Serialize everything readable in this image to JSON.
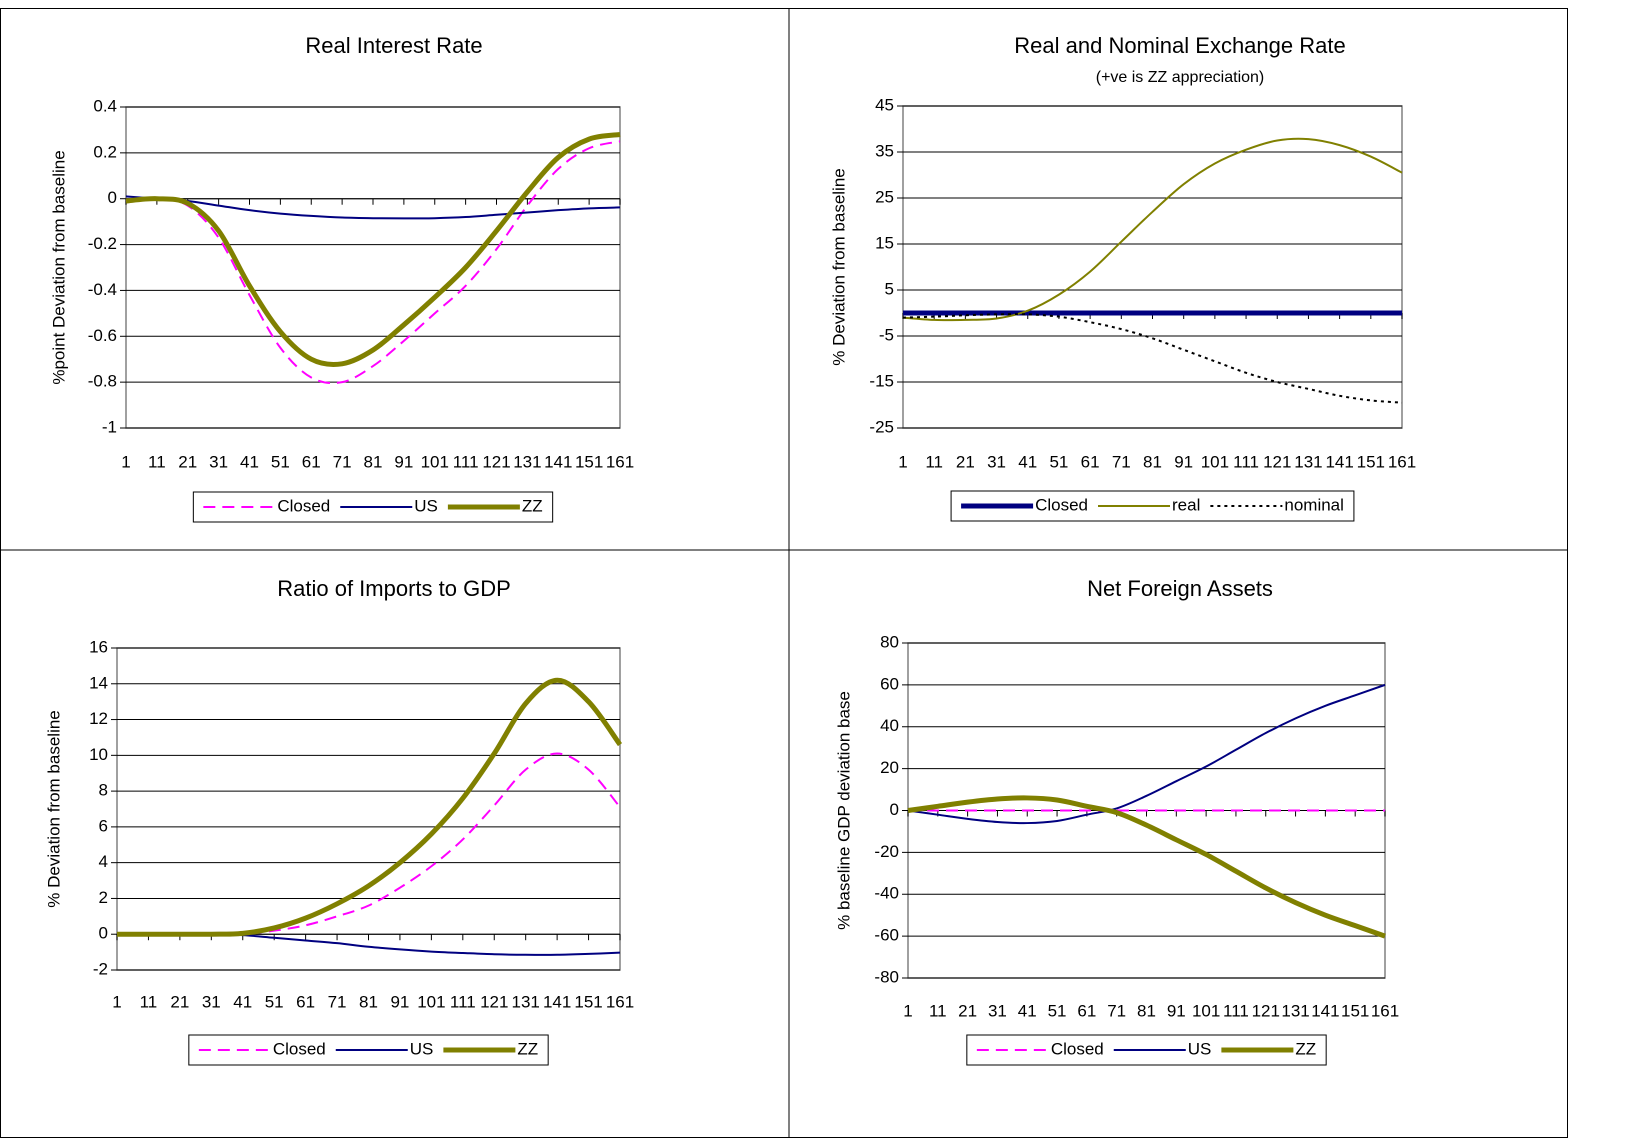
{
  "chart_data": [
    {
      "type": "line",
      "title": "Real Interest Rate",
      "y_label": "%point  Deviation from baseline",
      "x": [
        1,
        11,
        21,
        31,
        41,
        51,
        61,
        71,
        81,
        91,
        101,
        111,
        121,
        131,
        141,
        151,
        161
      ],
      "xlim": [
        1,
        161
      ],
      "xticks": [
        1,
        11,
        21,
        31,
        41,
        51,
        61,
        71,
        81,
        91,
        101,
        111,
        121,
        131,
        141,
        151,
        161
      ],
      "ylim": [
        -1,
        0.4
      ],
      "yticks": [
        -1,
        -0.8,
        -0.6,
        -0.4,
        -0.2,
        0,
        0.2,
        0.4
      ],
      "grid": true,
      "series": [
        {
          "name": "Closed",
          "color": "#ff00ff",
          "style": "dashed",
          "width": 2,
          "values": [
            -0.01,
            0.0,
            -0.03,
            -0.17,
            -0.42,
            -0.65,
            -0.78,
            -0.8,
            -0.73,
            -0.62,
            -0.5,
            -0.38,
            -0.22,
            -0.03,
            0.13,
            0.22,
            0.25
          ]
        },
        {
          "name": "US",
          "color": "#000080",
          "style": "solid",
          "width": 2,
          "values": [
            0.01,
            0.0,
            -0.01,
            -0.03,
            -0.05,
            -0.065,
            -0.075,
            -0.082,
            -0.085,
            -0.086,
            -0.085,
            -0.08,
            -0.07,
            -0.06,
            -0.05,
            -0.042,
            -0.038
          ]
        },
        {
          "name": "ZZ",
          "color": "#808000",
          "style": "solid",
          "width": 5,
          "values": [
            -0.01,
            0.0,
            -0.02,
            -0.14,
            -0.38,
            -0.58,
            -0.7,
            -0.72,
            -0.66,
            -0.55,
            -0.43,
            -0.3,
            -0.14,
            0.03,
            0.18,
            0.26,
            0.28
          ]
        }
      ]
    },
    {
      "type": "line",
      "title": "Real and Nominal Exchange Rate",
      "subtitle": "(+ve is ZZ appreciation)",
      "y_label": "%  Deviation from baseline",
      "x": [
        1,
        11,
        21,
        31,
        41,
        51,
        61,
        71,
        81,
        91,
        101,
        111,
        121,
        131,
        141,
        151,
        161
      ],
      "xlim": [
        1,
        161
      ],
      "xticks": [
        1,
        11,
        21,
        31,
        41,
        51,
        61,
        71,
        81,
        91,
        101,
        111,
        121,
        131,
        141,
        151,
        161
      ],
      "ylim": [
        -25,
        45
      ],
      "yticks": [
        -25,
        -15,
        -5,
        5,
        15,
        25,
        35,
        45
      ],
      "grid": true,
      "series": [
        {
          "name": "Closed",
          "color": "#000080",
          "style": "solid",
          "width": 5,
          "values": [
            0,
            0,
            0,
            0,
            0,
            0,
            0,
            0,
            0,
            0,
            0,
            0,
            0,
            0,
            0,
            0,
            0
          ]
        },
        {
          "name": "real",
          "color": "#808000",
          "style": "solid",
          "width": 2,
          "values": [
            -1,
            -1.5,
            -1.5,
            -1.2,
            0.5,
            4,
            9,
            15.5,
            22,
            28,
            32.5,
            35.5,
            37.5,
            37.8,
            36.5,
            34,
            30.5
          ]
        },
        {
          "name": "nominal",
          "color": "#000000",
          "style": "dotted",
          "width": 2,
          "values": [
            -1,
            -0.8,
            -0.5,
            -0.3,
            -0.3,
            -0.8,
            -2,
            -3.5,
            -5.5,
            -8,
            -10.5,
            -13,
            -15,
            -16.5,
            -18,
            -19,
            -19.5
          ]
        }
      ]
    },
    {
      "type": "line",
      "title": "Ratio of Imports to GDP",
      "y_label": "%  Deviation from baseline",
      "x": [
        1,
        11,
        21,
        31,
        41,
        51,
        61,
        71,
        81,
        91,
        101,
        111,
        121,
        131,
        141,
        151,
        161
      ],
      "xlim": [
        1,
        161
      ],
      "xticks": [
        1,
        11,
        21,
        31,
        41,
        51,
        61,
        71,
        81,
        91,
        101,
        111,
        121,
        131,
        141,
        151,
        161
      ],
      "ylim": [
        -2,
        16
      ],
      "yticks": [
        -2,
        0,
        2,
        4,
        6,
        8,
        10,
        12,
        14,
        16
      ],
      "grid": true,
      "series": [
        {
          "name": "Closed",
          "color": "#ff00ff",
          "style": "dashed",
          "width": 2,
          "values": [
            0,
            0,
            0,
            0,
            0.02,
            0.2,
            0.5,
            1.0,
            1.6,
            2.6,
            3.8,
            5.3,
            7.2,
            9.2,
            10.1,
            9.2,
            7.1
          ]
        },
        {
          "name": "US",
          "color": "#000080",
          "style": "solid",
          "width": 2,
          "values": [
            0,
            0,
            0,
            0,
            -0.05,
            -0.2,
            -0.35,
            -0.5,
            -0.7,
            -0.85,
            -0.97,
            -1.05,
            -1.12,
            -1.15,
            -1.15,
            -1.1,
            -1.03
          ]
        },
        {
          "name": "ZZ",
          "color": "#808000",
          "style": "solid",
          "width": 5,
          "values": [
            0,
            0,
            0,
            0,
            0.05,
            0.35,
            0.9,
            1.7,
            2.7,
            4.0,
            5.6,
            7.6,
            10.1,
            12.9,
            14.2,
            13.0,
            10.6
          ]
        }
      ]
    },
    {
      "type": "line",
      "title": "Net Foreign Assets",
      "y_label": "% baseline GDP deviation base",
      "x": [
        1,
        11,
        21,
        31,
        41,
        51,
        61,
        71,
        81,
        91,
        101,
        111,
        121,
        131,
        141,
        151,
        161
      ],
      "xlim": [
        1,
        161
      ],
      "xticks": [
        1,
        11,
        21,
        31,
        41,
        51,
        61,
        71,
        81,
        91,
        101,
        111,
        121,
        131,
        141,
        151,
        161
      ],
      "ylim": [
        -80,
        80
      ],
      "yticks": [
        -80,
        -60,
        -40,
        -20,
        0,
        20,
        40,
        60,
        80
      ],
      "grid": true,
      "series": [
        {
          "name": "Closed",
          "color": "#ff00ff",
          "style": "dashed",
          "width": 2,
          "values": [
            0,
            0,
            0,
            0,
            0,
            0,
            0,
            0,
            0,
            0,
            0,
            0,
            0,
            0,
            0,
            0,
            0
          ]
        },
        {
          "name": "US",
          "color": "#000080",
          "style": "solid",
          "width": 2,
          "values": [
            0,
            -2,
            -4,
            -5.5,
            -6,
            -5,
            -2,
            1,
            7,
            14,
            21,
            29,
            37,
            44,
            50,
            55,
            60
          ]
        },
        {
          "name": "ZZ",
          "color": "#808000",
          "style": "solid",
          "width": 5,
          "values": [
            0,
            2,
            4,
            5.5,
            6,
            5,
            2,
            -1,
            -7,
            -14,
            -21,
            -29,
            -37,
            -44,
            -50,
            -55,
            -60
          ]
        }
      ]
    }
  ]
}
